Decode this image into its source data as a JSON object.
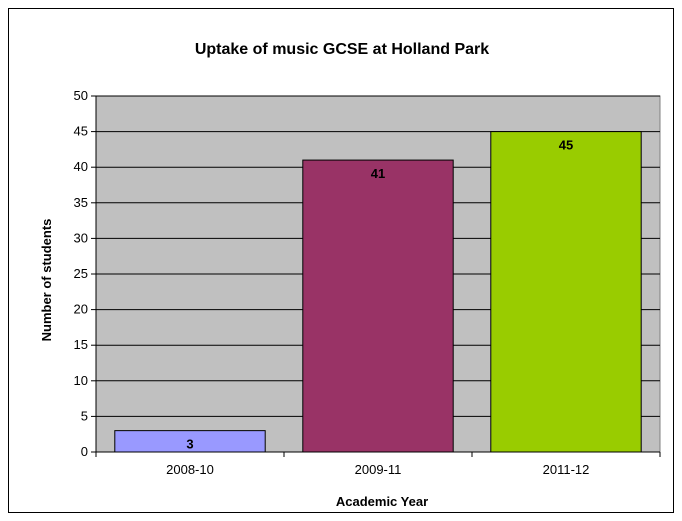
{
  "chart_data": {
    "type": "bar",
    "title": "Uptake of music GCSE at Holland Park",
    "xlabel": "Academic Year",
    "ylabel": "Number of students",
    "categories": [
      "2008-10",
      "2009-11",
      "2011-12"
    ],
    "values": [
      3,
      41,
      45
    ],
    "data_labels": [
      "3",
      "41",
      "45"
    ],
    "bar_colors": [
      "#9999ff",
      "#993366",
      "#99cc00"
    ],
    "ylim": [
      0,
      50
    ],
    "y_ticks": [
      0,
      5,
      10,
      15,
      20,
      25,
      30,
      35,
      40,
      45,
      50
    ],
    "y_tick_labels": [
      "0",
      "5",
      "10",
      "15",
      "20",
      "25",
      "30",
      "35",
      "40",
      "45",
      "50"
    ],
    "plot_background": "#c0c0c0",
    "grid": true,
    "legend": "none"
  }
}
